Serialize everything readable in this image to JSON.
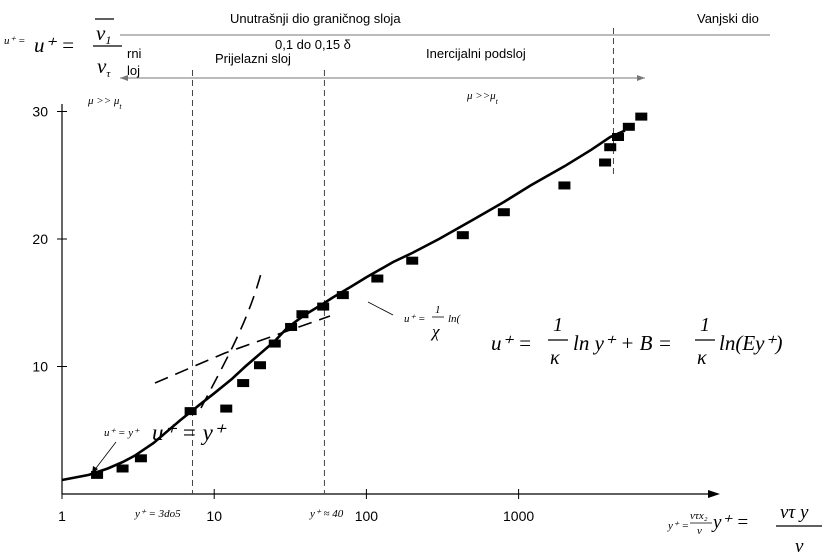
{
  "regions": {
    "inner_layer": "Unutrašnji dio graničnog sloja",
    "outer_part": "Vanjski dio",
    "overlap_extent": "0,1 do 0,15 δ",
    "viscous_partial": "rni",
    "viscous_partial2": "loj",
    "buffer_layer": "Prijelazni sloj",
    "inertial_layer": "Inercijalni podsloj",
    "viscous_condition": "μ >> μ",
    "viscous_condition_sub": "t",
    "inertial_condition": "μ >>μ",
    "inertial_condition_sub": "t"
  },
  "equations": {
    "uplus_def_prefix": "u⁺ =",
    "uplus_def_lhs": "u⁺ =",
    "uplus_def_num": "v",
    "uplus_def_num_sub": "1",
    "uplus_def_den": "v",
    "uplus_def_den_sub": "τ",
    "linear_small": "u⁺ = y⁺",
    "linear_large": "u⁺ = y⁺",
    "log_small_lhs": "u⁺ =",
    "log_small_num": "1",
    "log_small_den": "χ",
    "log_small_tail": "ln(",
    "log_law_1": "u⁺ =",
    "log_law_2": "ln y⁺ + B =",
    "log_law_3": "ln(Ey⁺)",
    "log_law_num": "1",
    "log_law_den": "κ",
    "buffer_start": "y⁺ = 3do5",
    "buffer_end": "y⁺ ≈ 40",
    "yplus_small": "y⁺ =",
    "yplus_small_num": "vτx₂",
    "yplus_small_den": "ν",
    "yplus_big": "y⁺ =",
    "yplus_big_num": "vτ y",
    "yplus_big_den": "ν"
  },
  "chart_data": {
    "type": "scatter",
    "x_scale": "log",
    "xlim": [
      1,
      10000
    ],
    "ylim": [
      0,
      30
    ],
    "x_ticks": [
      "1",
      "10",
      "100",
      "1000"
    ],
    "y_ticks": [
      "10",
      "20",
      "30"
    ],
    "series": [
      {
        "kind": "curve",
        "x": [
          1,
          1.5,
          2,
          2.5,
          3,
          4,
          5,
          6,
          8,
          10,
          13,
          16,
          20,
          25,
          30,
          35,
          40,
          50,
          60,
          80,
          100,
          150,
          200,
          300,
          500,
          800,
          1200,
          2000,
          3000,
          4000,
          5000
        ],
        "y": [
          1.1,
          1.5,
          2.0,
          2.5,
          3.0,
          4.0,
          5.0,
          5.8,
          7.0,
          7.9,
          9.0,
          10.0,
          11.0,
          12.0,
          13.0,
          13.6,
          14.1,
          14.8,
          15.4,
          16.3,
          17.0,
          18.2,
          18.9,
          20.0,
          21.5,
          22.9,
          24.2,
          25.7,
          27.0,
          28.0,
          28.5
        ]
      },
      {
        "kind": "markers",
        "x": [
          1.7,
          2.5,
          3.3,
          7,
          12,
          15.5,
          20,
          25,
          32,
          38,
          52,
          70,
          118,
          200,
          430,
          800,
          2000,
          3700,
          4000,
          4500,
          5300,
          6400
        ],
        "y": [
          1.5,
          2.0,
          2.8,
          6.5,
          6.7,
          8.7,
          10.1,
          11.8,
          13.1,
          14.1,
          14.7,
          15.6,
          16.9,
          18.3,
          20.3,
          22.1,
          24.2,
          26.0,
          27.2,
          28.0,
          28.8,
          29.6
        ]
      },
      {
        "kind": "log-law-dashed",
        "x": [
          9.5,
          38
        ],
        "y": [
          8.5,
          13.8
        ]
      },
      {
        "kind": "linear-law-dashed",
        "x": [
          12,
          15,
          18,
          22
        ],
        "y": [
          6.9,
          9.8,
          13.0,
          17.5
        ]
      }
    ],
    "boundaries": [
      {
        "x": 7.2
      },
      {
        "x": 53
      },
      {
        "x": 4200
      }
    ]
  }
}
